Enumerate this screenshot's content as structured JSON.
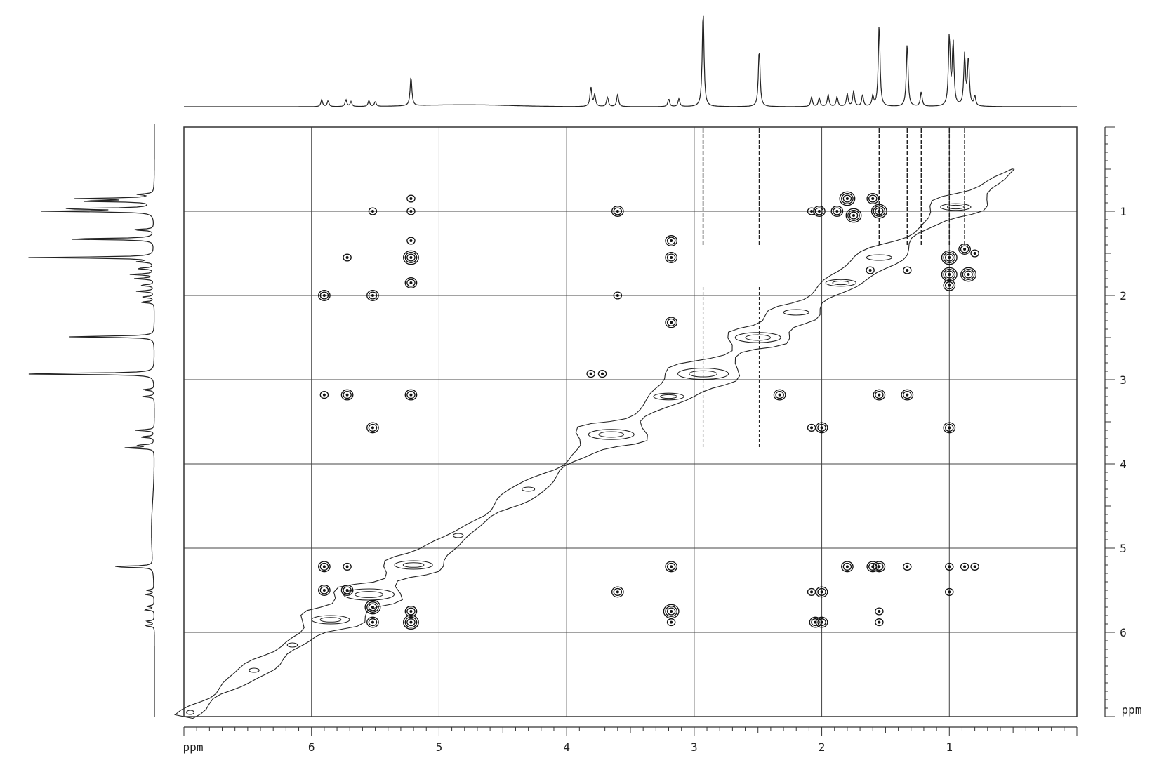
{
  "chart_data": {
    "type": "heatmap",
    "title": "",
    "x_unit": "ppm",
    "y_unit": "ppm",
    "xlim": [
      7.0,
      0.0
    ],
    "ylim": [
      0.0,
      7.0
    ],
    "xtick_labels": [
      "6",
      "5",
      "4",
      "3",
      "2",
      "1"
    ],
    "ytick_labels": [
      "1",
      "2",
      "3",
      "4",
      "5",
      "6"
    ],
    "grid": true,
    "projection_peaks": [
      {
        "ppm": 5.92,
        "h": 0.07
      },
      {
        "ppm": 5.87,
        "h": 0.06
      },
      {
        "ppm": 5.73,
        "h": 0.07
      },
      {
        "ppm": 5.69,
        "h": 0.05
      },
      {
        "ppm": 5.55,
        "h": 0.06
      },
      {
        "ppm": 5.5,
        "h": 0.05
      },
      {
        "ppm": 5.22,
        "h": 0.3
      },
      {
        "ppm": 3.81,
        "h": 0.2
      },
      {
        "ppm": 3.78,
        "h": 0.12
      },
      {
        "ppm": 3.68,
        "h": 0.1
      },
      {
        "ppm": 3.6,
        "h": 0.13
      },
      {
        "ppm": 3.2,
        "h": 0.08
      },
      {
        "ppm": 3.12,
        "h": 0.08
      },
      {
        "ppm": 2.93,
        "h": 1.0
      },
      {
        "ppm": 2.49,
        "h": 0.6
      },
      {
        "ppm": 2.08,
        "h": 0.1
      },
      {
        "ppm": 2.02,
        "h": 0.09
      },
      {
        "ppm": 1.95,
        "h": 0.12
      },
      {
        "ppm": 1.88,
        "h": 0.1
      },
      {
        "ppm": 1.8,
        "h": 0.13
      },
      {
        "ppm": 1.75,
        "h": 0.16
      },
      {
        "ppm": 1.68,
        "h": 0.12
      },
      {
        "ppm": 1.6,
        "h": 0.1
      },
      {
        "ppm": 1.55,
        "h": 0.85
      },
      {
        "ppm": 1.33,
        "h": 0.65
      },
      {
        "ppm": 1.22,
        "h": 0.15
      },
      {
        "ppm": 1.0,
        "h": 0.72
      },
      {
        "ppm": 0.97,
        "h": 0.65
      },
      {
        "ppm": 0.88,
        "h": 0.52
      },
      {
        "ppm": 0.85,
        "h": 0.5
      },
      {
        "ppm": 0.8,
        "h": 0.1
      }
    ],
    "diagonal_contours": [
      {
        "ppm": 0.95,
        "w": 0.12
      },
      {
        "ppm": 1.55,
        "w": 0.1
      },
      {
        "ppm": 1.85,
        "w": 0.12
      },
      {
        "ppm": 2.2,
        "w": 0.1
      },
      {
        "ppm": 2.5,
        "w": 0.18
      },
      {
        "ppm": 2.93,
        "w": 0.2
      },
      {
        "ppm": 3.2,
        "w": 0.12
      },
      {
        "ppm": 3.65,
        "w": 0.18
      },
      {
        "ppm": 4.3,
        "w": 0.05
      },
      {
        "ppm": 4.85,
        "w": 0.04
      },
      {
        "ppm": 5.2,
        "w": 0.15
      },
      {
        "ppm": 5.55,
        "w": 0.2
      },
      {
        "ppm": 5.85,
        "w": 0.15
      },
      {
        "ppm": 6.15,
        "w": 0.04
      },
      {
        "ppm": 6.45,
        "w": 0.04
      },
      {
        "ppm": 6.95,
        "w": 0.03
      }
    ],
    "cross_peaks": [
      {
        "x": 5.22,
        "y": 0.85,
        "r": 1
      },
      {
        "x": 5.22,
        "y": 1.0,
        "r": 1
      },
      {
        "x": 5.22,
        "y": 1.35,
        "r": 1
      },
      {
        "x": 5.22,
        "y": 1.55,
        "r": 3
      },
      {
        "x": 5.22,
        "y": 1.85,
        "r": 2
      },
      {
        "x": 5.22,
        "y": 3.18,
        "r": 2
      },
      {
        "x": 5.22,
        "y": 5.75,
        "r": 2
      },
      {
        "x": 5.22,
        "y": 5.88,
        "r": 3
      },
      {
        "x": 5.52,
        "y": 1.0,
        "r": 1
      },
      {
        "x": 5.52,
        "y": 2.0,
        "r": 2
      },
      {
        "x": 5.52,
        "y": 3.57,
        "r": 2
      },
      {
        "x": 5.52,
        "y": 5.7,
        "r": 3
      },
      {
        "x": 5.52,
        "y": 5.88,
        "r": 2
      },
      {
        "x": 5.72,
        "y": 1.55,
        "r": 1
      },
      {
        "x": 5.72,
        "y": 3.18,
        "r": 2
      },
      {
        "x": 5.72,
        "y": 5.22,
        "r": 1
      },
      {
        "x": 5.72,
        "y": 5.5,
        "r": 2
      },
      {
        "x": 5.9,
        "y": 2.0,
        "r": 2
      },
      {
        "x": 5.9,
        "y": 3.18,
        "r": 1
      },
      {
        "x": 5.9,
        "y": 5.22,
        "r": 2
      },
      {
        "x": 5.9,
        "y": 5.5,
        "r": 2
      },
      {
        "x": 3.81,
        "y": 2.93,
        "r": 1
      },
      {
        "x": 3.72,
        "y": 2.93,
        "r": 1
      },
      {
        "x": 3.6,
        "y": 1.0,
        "r": 2
      },
      {
        "x": 3.6,
        "y": 2.0,
        "r": 1
      },
      {
        "x": 3.6,
        "y": 5.52,
        "r": 2
      },
      {
        "x": 3.18,
        "y": 1.35,
        "r": 2
      },
      {
        "x": 3.18,
        "y": 1.55,
        "r": 2
      },
      {
        "x": 3.18,
        "y": 5.22,
        "r": 2
      },
      {
        "x": 3.18,
        "y": 5.75,
        "r": 3
      },
      {
        "x": 3.18,
        "y": 5.88,
        "r": 1
      },
      {
        "x": 3.18,
        "y": 2.32,
        "r": 2
      },
      {
        "x": 2.33,
        "y": 3.18,
        "r": 2
      },
      {
        "x": 2.08,
        "y": 1.0,
        "r": 1
      },
      {
        "x": 2.02,
        "y": 1.0,
        "r": 2
      },
      {
        "x": 1.88,
        "y": 1.0,
        "r": 2
      },
      {
        "x": 1.8,
        "y": 0.85,
        "r": 3
      },
      {
        "x": 1.75,
        "y": 1.05,
        "r": 3
      },
      {
        "x": 1.6,
        "y": 0.85,
        "r": 2
      },
      {
        "x": 1.55,
        "y": 1.0,
        "r": 3
      },
      {
        "x": 2.08,
        "y": 3.57,
        "r": 1
      },
      {
        "x": 2.0,
        "y": 3.57,
        "r": 2
      },
      {
        "x": 2.08,
        "y": 5.52,
        "r": 1
      },
      {
        "x": 2.0,
        "y": 5.52,
        "r": 2
      },
      {
        "x": 2.05,
        "y": 5.88,
        "r": 2
      },
      {
        "x": 2.0,
        "y": 5.88,
        "r": 2
      },
      {
        "x": 1.62,
        "y": 1.7,
        "r": 1
      },
      {
        "x": 1.55,
        "y": 3.18,
        "r": 2
      },
      {
        "x": 1.33,
        "y": 3.18,
        "r": 2
      },
      {
        "x": 1.33,
        "y": 1.7,
        "r": 1
      },
      {
        "x": 1.0,
        "y": 1.55,
        "r": 3
      },
      {
        "x": 1.0,
        "y": 1.75,
        "r": 3
      },
      {
        "x": 1.0,
        "y": 1.88,
        "r": 2
      },
      {
        "x": 0.88,
        "y": 1.45,
        "r": 2
      },
      {
        "x": 0.85,
        "y": 1.75,
        "r": 3
      },
      {
        "x": 0.8,
        "y": 1.5,
        "r": 1
      },
      {
        "x": 1.0,
        "y": 3.57,
        "r": 2
      },
      {
        "x": 1.6,
        "y": 5.22,
        "r": 2
      },
      {
        "x": 1.55,
        "y": 5.22,
        "r": 2
      },
      {
        "x": 1.33,
        "y": 5.22,
        "r": 1
      },
      {
        "x": 1.0,
        "y": 5.22,
        "r": 1
      },
      {
        "x": 0.88,
        "y": 5.22,
        "r": 1
      },
      {
        "x": 0.8,
        "y": 5.22,
        "r": 1
      },
      {
        "x": 1.8,
        "y": 5.22,
        "r": 2
      },
      {
        "x": 1.55,
        "y": 5.75,
        "r": 1
      },
      {
        "x": 1.55,
        "y": 5.88,
        "r": 1
      },
      {
        "x": 1.0,
        "y": 5.52,
        "r": 1
      }
    ],
    "t1_noise_columns": [
      2.93,
      2.49,
      1.55,
      1.33,
      1.22,
      1.0,
      0.88
    ]
  }
}
